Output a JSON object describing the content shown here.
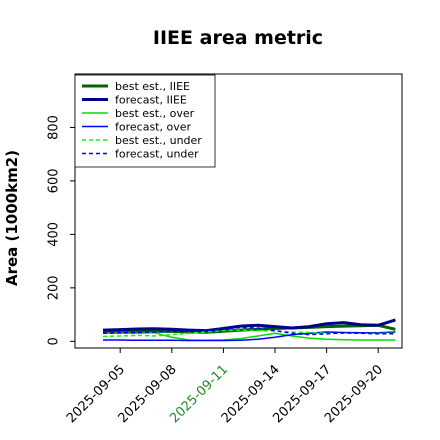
{
  "chart_data": {
    "type": "line",
    "title": "IIEE area metric",
    "xlabel": "",
    "ylabel": "Area (1000km2)",
    "ylim": [
      -25,
      1000
    ],
    "yticks": [
      0,
      200,
      400,
      600,
      800
    ],
    "x": [
      "2025-09-04",
      "2025-09-05",
      "2025-09-06",
      "2025-09-07",
      "2025-09-08",
      "2025-09-09",
      "2025-09-10",
      "2025-09-11",
      "2025-09-12",
      "2025-09-13",
      "2025-09-14",
      "2025-09-15",
      "2025-09-16",
      "2025-09-17",
      "2025-09-18",
      "2025-09-19",
      "2025-09-20",
      "2025-09-21"
    ],
    "xticks": [
      "2025-09-05",
      "2025-09-08",
      "2025-09-11",
      "2025-09-14",
      "2025-09-17",
      "2025-09-20"
    ],
    "highlight_tick": "2025-09-11",
    "highlight_color": "#228b22",
    "grid": false,
    "legend_position": "upper-left",
    "series": [
      {
        "name": "best est., IIEE",
        "color": "#006400",
        "style": "solid",
        "width": 3,
        "values": [
          36,
          37,
          38,
          38,
          37,
          35,
          34,
          38,
          42,
          45,
          48,
          50,
          52,
          55,
          57,
          58,
          60,
          45
        ]
      },
      {
        "name": "forecast, IIEE",
        "color": "#00008b",
        "style": "solid",
        "width": 3,
        "values": [
          42,
          44,
          46,
          47,
          45,
          42,
          40,
          48,
          57,
          60,
          55,
          50,
          55,
          66,
          70,
          62,
          60,
          80
        ]
      },
      {
        "name": "best est., over",
        "color": "#00dd00",
        "style": "solid",
        "width": 1.5,
        "values": [
          30,
          30,
          30,
          32,
          15,
          5,
          4,
          5,
          10,
          20,
          30,
          20,
          12,
          8,
          6,
          5,
          5,
          5
        ]
      },
      {
        "name": "forecast, over",
        "color": "#0000ff",
        "style": "solid",
        "width": 1.5,
        "values": [
          5,
          5,
          4,
          4,
          4,
          3,
          3,
          3,
          4,
          8,
          15,
          25,
          30,
          35,
          33,
          32,
          32,
          35
        ]
      },
      {
        "name": "best est., under",
        "color": "#00ff00",
        "style": "dashed",
        "width": 1.5,
        "values": [
          18,
          20,
          22,
          20,
          25,
          30,
          35,
          40,
          42,
          40,
          38,
          35,
          33,
          30,
          30,
          30,
          30,
          30
        ]
      },
      {
        "name": "forecast, under",
        "color": "#0000ff",
        "style": "dashed",
        "width": 1.5,
        "values": [
          30,
          32,
          33,
          35,
          37,
          38,
          40,
          45,
          52,
          50,
          40,
          30,
          25,
          28,
          32,
          30,
          28,
          28
        ]
      }
    ]
  }
}
